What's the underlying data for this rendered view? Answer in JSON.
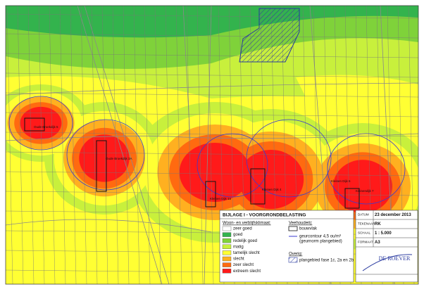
{
  "legend": {
    "title": "BIJLAGE I - VOORGRONDBELASTING",
    "climate_heading": "Woon- en verblijfsklimaat:",
    "climate_items": [
      {
        "label": "zeer goed",
        "color": "#ffffff"
      },
      {
        "label": "goed",
        "color": "#33b34d"
      },
      {
        "label": "redelijk goed",
        "color": "#7fd23a"
      },
      {
        "label": "matig",
        "color": "#c8f03c"
      },
      {
        "label": "tamelijk slecht",
        "color": "#ffff33"
      },
      {
        "label": "slecht",
        "color": "#ffb020"
      },
      {
        "label": "zeer slecht",
        "color": "#ff6a10"
      },
      {
        "label": "extreem slecht",
        "color": "#ff1a1a"
      }
    ],
    "livestock_heading": "Veehouderij:",
    "livestock_items": [
      "bouwvlak",
      "geurcontour 4,5 ou/m³",
      "(geurnorm plangebied)"
    ],
    "other_heading": "Overig:",
    "other_items": [
      "plangebied fase 1c, 2a en 2b"
    ]
  },
  "info_table": {
    "rows": [
      [
        "DATUM",
        "23 december 2013"
      ],
      [
        "TEKENAAR",
        "RK"
      ],
      [
        "SCHAAL",
        "1 : 5.000"
      ],
      [
        "FORMAAT",
        "A3"
      ]
    ]
  },
  "logo": {
    "name": "DE ROEVER"
  },
  "map_labels": [
    "Oude Broekdijk 5",
    "Oude Broekdijk 3A",
    "Kleinen Dijk 1a",
    "Kleinen Dijk 4",
    "Kleinen Dijk 6",
    "Kleinendijk 7"
  ]
}
